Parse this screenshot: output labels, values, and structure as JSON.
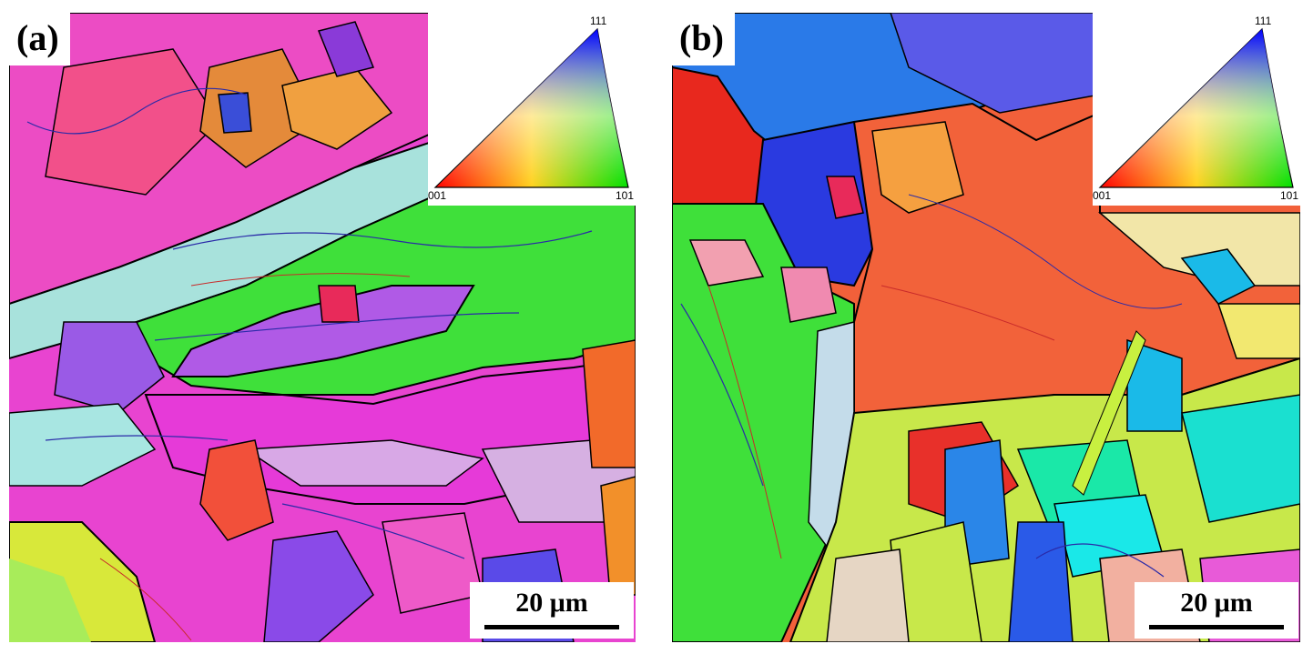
{
  "panels": [
    {
      "label": "(a)",
      "scale_bar": "20 μm",
      "ipf_key": {
        "corner_111": "111",
        "corner_001": "001",
        "corner_101": "101"
      }
    },
    {
      "label": "(b)",
      "scale_bar": "20 μm",
      "ipf_key": {
        "corner_111": "111",
        "corner_001": "001",
        "corner_101": "101"
      }
    }
  ],
  "colors": {
    "magenta": "#e63ad8",
    "pink": "#f25a9a",
    "green": "#3ee23a",
    "cyan_light": "#a8e6e2",
    "violet": "#9a5ae8",
    "orange_red": "#f2603a",
    "red": "#e8281e",
    "blue": "#2a46e8",
    "yellow": "#dcee3a",
    "boundary": "#000000"
  }
}
